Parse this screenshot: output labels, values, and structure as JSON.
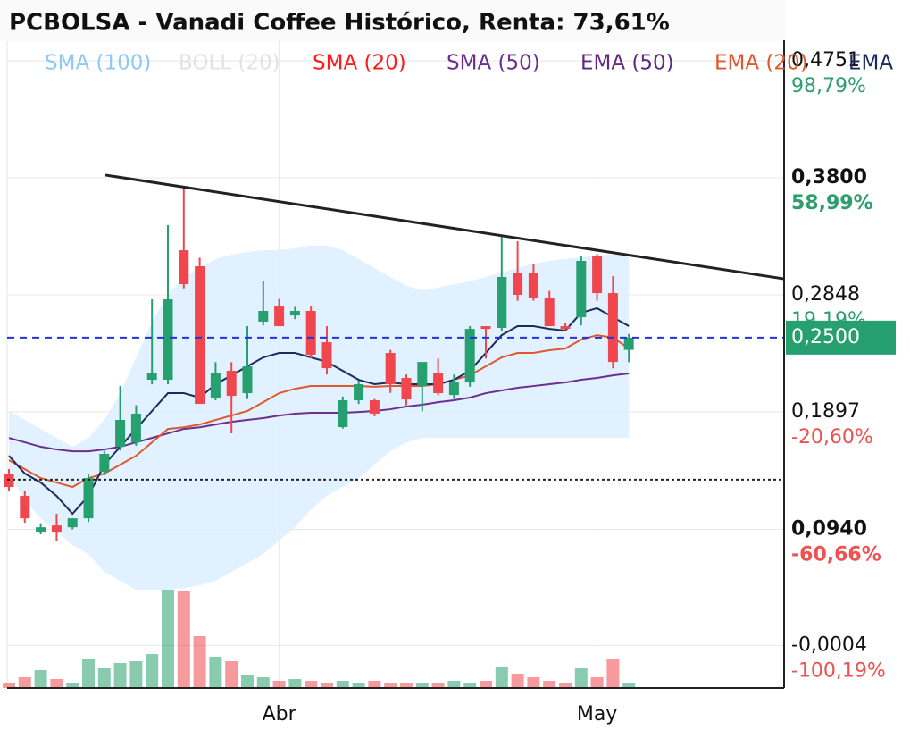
{
  "chart_data": {
    "type": "candlestick",
    "title": "PCBOLSA - Vanadi Coffee Histórico, Renta: 73,61%",
    "categories": [
      null,
      null,
      null,
      null,
      null,
      null,
      null,
      null,
      null,
      null,
      null,
      null,
      null,
      null,
      null,
      null,
      null,
      "Abr",
      null,
      null,
      null,
      null,
      null,
      null,
      null,
      null,
      null,
      null,
      null,
      null,
      null,
      null,
      null,
      null,
      null,
      null,
      null,
      "May",
      null,
      null
    ],
    "open": [
      0.1394,
      0.1212,
      0.0921,
      0.0972,
      0.0957,
      0.103,
      0.1408,
      0.1612,
      0.1648,
      0.2157,
      0.2157,
      0.3211,
      0.308,
      0.2012,
      0.223,
      0.2048,
      0.263,
      0.2753,
      0.268,
      0.2717,
      0.2462,
      0.1772,
      0.199,
      0.199,
      0.2375,
      0.2172,
      0.2106,
      0.2208,
      0.2033,
      0.2135,
      0.2593,
      0.2579,
      0.3029,
      0.3029,
      0.2826,
      0.2593,
      0.2666,
      0.316,
      0.2862,
      0.24
    ],
    "high": [
      0.143,
      0.125,
      0.099,
      0.1067,
      0.103,
      0.1394,
      0.158,
      0.2106,
      0.195,
      0.2811,
      0.3415,
      0.372,
      0.315,
      0.23,
      0.23,
      0.2593,
      0.2957,
      0.2815,
      0.275,
      0.2753,
      0.2593,
      0.202,
      0.215,
      0.2,
      0.24,
      0.22,
      0.225,
      0.233,
      0.22,
      0.2593,
      0.2593,
      0.332,
      0.3284,
      0.31,
      0.288,
      0.262,
      0.316,
      0.318,
      0.3,
      0.253
    ],
    "low": [
      0.125,
      0.0994,
      0.09,
      0.0849,
      0.094,
      0.1,
      0.138,
      0.158,
      0.162,
      0.212,
      0.2121,
      0.29,
      0.1961,
      0.199,
      0.1721,
      0.2,
      0.26,
      0.26,
      0.265,
      0.233,
      0.22,
      0.176,
      0.196,
      0.186,
      0.205,
      0.195,
      0.19,
      0.203,
      0.2,
      0.21,
      0.233,
      0.255,
      0.28,
      0.28,
      0.26,
      0.256,
      0.26,
      0.28,
      0.225,
      0.23
    ],
    "close": [
      0.1285,
      0.103,
      0.0957,
      0.0921,
      0.103,
      0.1357,
      0.1554,
      0.183,
      0.1881,
      0.2208,
      0.2811,
      0.2935,
      0.1961,
      0.2208,
      0.2026,
      0.2266,
      0.2717,
      0.2593,
      0.2717,
      0.2361,
      0.2251,
      0.199,
      0.2121,
      0.1881,
      0.2121,
      0.1997,
      0.2302,
      0.2048,
      0.2135,
      0.2571,
      0.2571,
      0.2993,
      0.2848,
      0.2826,
      0.2593,
      0.2571,
      0.3124,
      0.2862,
      0.2302,
      0.25
    ],
    "volume": [
      5,
      12,
      20,
      10,
      5,
      32,
      22,
      28,
      30,
      38,
      110,
      108,
      58,
      35,
      30,
      15,
      12,
      8,
      10,
      8,
      6,
      8,
      6,
      8,
      6,
      6,
      6,
      6,
      8,
      6,
      8,
      24,
      16,
      12,
      8,
      6,
      22,
      12,
      32,
      5
    ],
    "volume_lim": [
      0,
      120
    ],
    "up_color": "#26a06e",
    "down_color": "#f0474f",
    "series": [
      {
        "name": "SMA (100)",
        "color": "#8ec9f5"
      },
      {
        "name": "BOLL (20)",
        "color": "#e2e2e2",
        "upper": [
          0.1903,
          0.183,
          0.1757,
          0.1684,
          0.1612,
          0.1684,
          0.183,
          0.2048,
          0.2339,
          0.263,
          0.2848,
          0.2993,
          0.3066,
          0.3138,
          0.3175,
          0.3196,
          0.3211,
          0.3211,
          0.3226,
          0.3248,
          0.3248,
          0.3211,
          0.3138,
          0.3066,
          0.2993,
          0.292,
          0.2884,
          0.2906,
          0.2935,
          0.2957,
          0.2993,
          0.3029,
          0.3066,
          0.3102,
          0.3124,
          0.3138,
          0.3153,
          0.3168,
          0.3175,
          0.3175
        ],
        "lower": [
          0.1394,
          0.1176,
          0.103,
          0.0921,
          0.0812,
          0.0739,
          0.0594,
          0.0521,
          0.0448,
          0.0448,
          0.0448,
          0.0463,
          0.0485,
          0.0521,
          0.0594,
          0.0667,
          0.0739,
          0.0849,
          0.0957,
          0.1103,
          0.1212,
          0.1285,
          0.1357,
          0.1466,
          0.1575,
          0.1648,
          0.1684,
          0.1684,
          0.1684,
          0.1684,
          0.1684,
          0.1684,
          0.1684,
          0.1684,
          0.1684,
          0.1684,
          0.1684,
          0.1684,
          0.1684,
          0.1684
        ]
      },
      {
        "name": "SMA (20)",
        "color": "#ff1a1a"
      },
      {
        "name": "SMA (50)",
        "color": "#6a2f8f",
        "values": [
          0.1684,
          0.1648,
          0.1612,
          0.159,
          0.1575,
          0.1575,
          0.159,
          0.1612,
          0.1648,
          0.1684,
          0.1721,
          0.1757,
          0.177,
          0.1793,
          0.1815,
          0.183,
          0.1845,
          0.1866,
          0.1881,
          0.1888,
          0.1888,
          0.1888,
          0.1895,
          0.1903,
          0.1917,
          0.1939,
          0.1954,
          0.1975,
          0.199,
          0.2012,
          0.2048,
          0.207,
          0.2092,
          0.2106,
          0.2121,
          0.2135,
          0.2157,
          0.2172,
          0.2193,
          0.2208
        ]
      },
      {
        "name": "EMA (50)",
        "color": "#5e2a86"
      },
      {
        "name": "EMA (20)",
        "color": "#e0572d",
        "values": [
          0.1503,
          0.143,
          0.1357,
          0.1321,
          0.1285,
          0.1357,
          0.1394,
          0.1466,
          0.1539,
          0.1648,
          0.1757,
          0.177,
          0.1793,
          0.183,
          0.1866,
          0.1903,
          0.1975,
          0.2048,
          0.2084,
          0.2106,
          0.2106,
          0.2106,
          0.2106,
          0.21,
          0.2106,
          0.2106,
          0.2106,
          0.2121,
          0.2157,
          0.2193,
          0.2266,
          0.2339,
          0.2375,
          0.2375,
          0.2397,
          0.2411,
          0.2484,
          0.252,
          0.25,
          0.2411
        ]
      },
      {
        "name": "EMA",
        "color": "#1c2b5e",
        "values": [
          0.1539,
          0.1394,
          0.1321,
          0.1212,
          0.1067,
          0.1212,
          0.1466,
          0.1612,
          0.1757,
          0.1903,
          0.2048,
          0.2048,
          0.2012,
          0.2121,
          0.2193,
          0.2266,
          0.2339,
          0.2375,
          0.2375,
          0.2339,
          0.2302,
          0.223,
          0.2157,
          0.2121,
          0.2135,
          0.2121,
          0.2121,
          0.2121,
          0.2157,
          0.223,
          0.2375,
          0.252,
          0.2593,
          0.2593,
          0.2571,
          0.2557,
          0.2702,
          0.2739,
          0.2666,
          0.2593
        ]
      }
    ],
    "ylim": [
      -0.035,
      0.4919
    ],
    "yticks": [
      {
        "value": 0.4751,
        "label": "0,4751"
      },
      {
        "value": 0.38,
        "label": "0,3800"
      },
      {
        "value": 0.2848,
        "label": "0,2848"
      },
      {
        "value": 0.1897,
        "label": "0,1897"
      },
      {
        "value": 0.094,
        "label": "0,0940"
      },
      {
        "value": -0.0004,
        "label": "-0,0004"
      }
    ],
    "ytick_percents": [
      "98,79%",
      "58,99%",
      "19,19%",
      "-20,60%",
      "-60,66%",
      "-100,19%"
    ],
    "emphasized_yticks": [
      1,
      4
    ],
    "current_price": {
      "value": 0.25,
      "label": "0,2500"
    },
    "support_level": 0.1344,
    "trendline": {
      "x": [
        6.07,
        48.76
      ],
      "y": [
        0.3822,
        0.2978
      ]
    },
    "grid": true
  }
}
